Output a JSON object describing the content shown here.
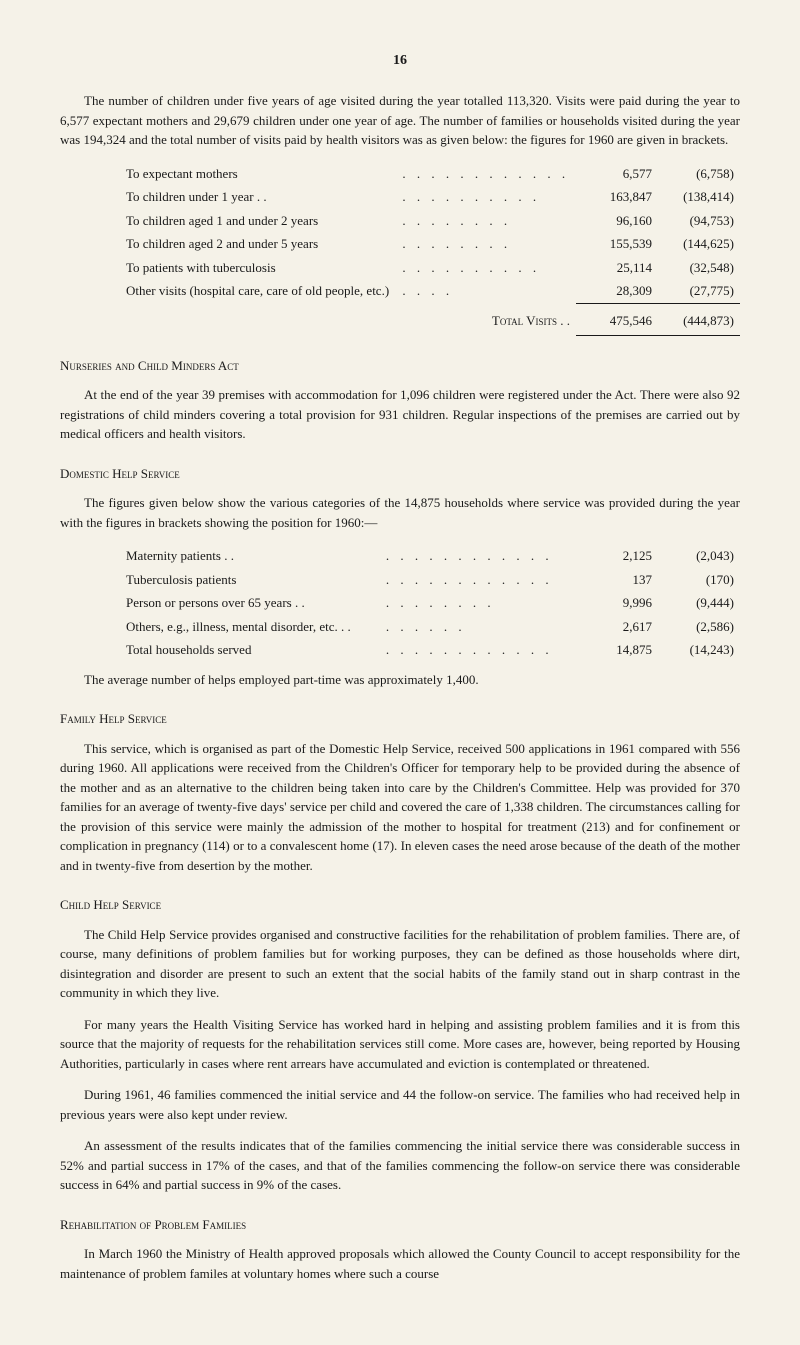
{
  "page_number": "16",
  "intro_para": "The number of children under five years of age visited during the year totalled 113,320. Visits were paid during the year to 6,577 expectant mothers and 29,679 children under one year of age. The number of families or households visited during the year was 194,324 and the total number of visits paid by health visitors was as given below: the figures for 1960 are given in brackets.",
  "visits_table": {
    "rows": [
      {
        "label": "To expectant mothers",
        "dots": ". .   . .   . .   . .   . .   . .",
        "v1": "6,577",
        "v2": "(6,758)"
      },
      {
        "label": "To children under 1 year  . .",
        "dots": ". .   . .   . .   . .   . .",
        "v1": "163,847",
        "v2": "(138,414)"
      },
      {
        "label": "To children aged 1 and under 2 years",
        "dots": ". .   . .   . .   . .",
        "v1": "96,160",
        "v2": "(94,753)"
      },
      {
        "label": "To children aged 2 and under 5 years",
        "dots": ". .   . .   . .   . .",
        "v1": "155,539",
        "v2": "(144,625)"
      },
      {
        "label": "To patients with tuberculosis",
        "dots": ". .   . .   . .   . .   . .",
        "v1": "25,114",
        "v2": "(32,548)"
      },
      {
        "label": "Other visits (hospital care, care of old people, etc.)",
        "dots": ". .   . .",
        "v1": "28,309",
        "v2": "(27,775)"
      }
    ],
    "total_label": "Total Visits   . .",
    "total_v1": "475,546",
    "total_v2": "(444,873)"
  },
  "nurseries": {
    "heading": "Nurseries and Child Minders Act",
    "para": "At the end of the year 39 premises with accommodation for 1,096 children were registered under the Act. There were also 92 registrations of child minders covering a total provision for 931 children. Regular inspections of the premises are carried out by medical officers and health visitors."
  },
  "domestic": {
    "heading": "Domestic Help Service",
    "para": "The figures given below show the various categories of the 14,875 households where service was provided during the year with the figures in brackets showing the position for 1960:—",
    "rows": [
      {
        "label": "Maternity patients  . .",
        "dots": ". .   . .   . .   . .   . .   . .",
        "v1": "2,125",
        "v2": "(2,043)"
      },
      {
        "label": "Tuberculosis patients",
        "dots": ". .   . .   . .   . .   . .   . .",
        "v1": "137",
        "v2": "(170)"
      },
      {
        "label": "Person or persons over 65 years  . .",
        "dots": ". .   . .   . .   . .",
        "v1": "9,996",
        "v2": "(9,444)"
      },
      {
        "label": "Others, e.g., illness, mental disorder, etc. . .",
        "dots": ". .   . .   . .",
        "v1": "2,617",
        "v2": "(2,586)"
      },
      {
        "label": "Total households served",
        "dots": ". .   . .   . .   . .   . .   . .",
        "v1": "14,875",
        "v2": "(14,243)"
      }
    ],
    "tail": "The average number of helps employed part-time was approximately 1,400."
  },
  "family": {
    "heading": "Family Help Service",
    "para": "This service, which is organised as part of the Domestic Help Service, received 500 applications in 1961 compared with 556 during 1960. All applications were received from the Children's Officer for temporary help to be provided during the absence of the mother and as an alternative to the children being taken into care by the Children's Committee. Help was provided for 370 families for an average of twenty-five days' service per child and covered the care of 1,338 children. The circumstances calling for the provision of this service were mainly the admission of the mother to hospital for treatment (213) and for confinement or complication in pregnancy (114) or to a convalescent home (17). In eleven cases the need arose because of the death of the mother and in twenty-five from desertion by the mother."
  },
  "childhelp": {
    "heading": "Child Help Service",
    "p1": "The Child Help Service provides organised and constructive facilities for the rehabilitation of problem families. There are, of course, many definitions of problem families but for working purposes, they can be defined as those households where dirt, disintegration and disorder are present to such an extent that the social habits of the family stand out in sharp contrast in the community in which they live.",
    "p2": "For many years the Health Visiting Service has worked hard in helping and assisting problem families and it is from this source that the majority of requests for the rehabilitation services still come. More cases are, however, being reported by Housing Authorities, particularly in cases where rent arrears have accumulated and eviction is contemplated or threatened.",
    "p3": "During 1961, 46 families commenced the initial service and 44 the follow-on service. The families who had received help in previous years were also kept under review.",
    "p4": "An assessment of the results indicates that of the families commencing the initial service there was considerable success in 52% and partial success in 17% of the cases, and that of the families commencing the follow-on service there was considerable success in 64% and partial success in 9% of the cases."
  },
  "rehab": {
    "heading": "Rehabilitation of Problem Families",
    "para": "In March 1960 the Ministry of Health approved proposals which allowed the County Council to accept responsibility for the maintenance of problem familes at voluntary homes where such a course"
  }
}
